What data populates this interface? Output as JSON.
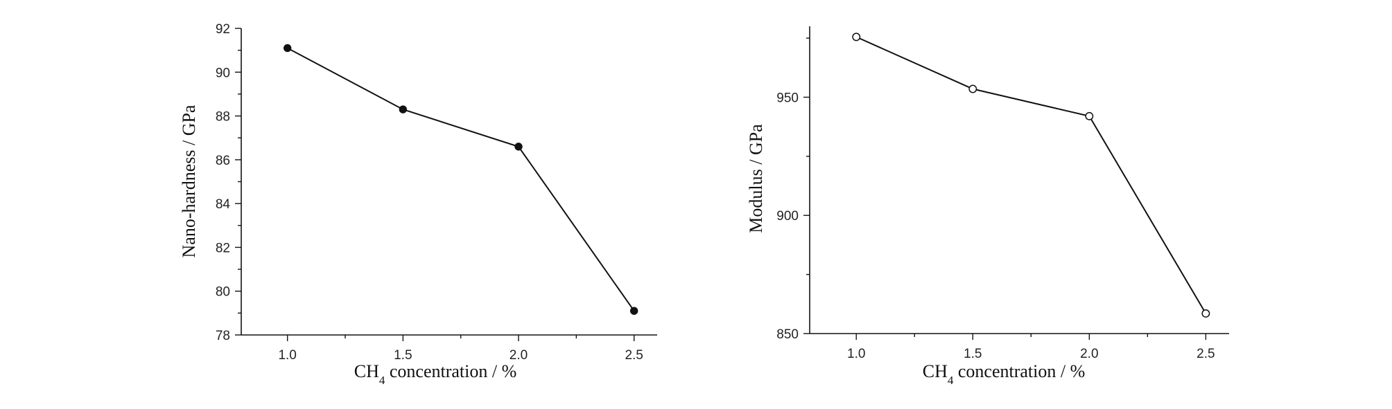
{
  "chart_data": [
    {
      "type": "line",
      "x": [
        1.0,
        1.5,
        2.0,
        2.5
      ],
      "xlim": [
        0.8,
        2.6
      ],
      "ylim": [
        78,
        92
      ],
      "x_ticks": [
        "1.0",
        "1.5",
        "2.0",
        "2.5"
      ],
      "y_ticks": [
        "78",
        "80",
        "82",
        "84",
        "86",
        "88",
        "90",
        "92"
      ],
      "xlabel": {
        "main": "CH",
        "sub": "4",
        "rest": " concentration / %"
      },
      "ylabel": "Nano-hardness / GPa",
      "series": [
        {
          "values": [
            91.1,
            88.3,
            86.6,
            79.1
          ],
          "marker": "filled-circle",
          "color": "#111111"
        }
      ],
      "grid": false
    },
    {
      "type": "line",
      "x": [
        1.0,
        1.5,
        2.0,
        2.5
      ],
      "xlim": [
        0.8,
        2.6
      ],
      "ylim": [
        850,
        980
      ],
      "x_ticks": [
        "1.0",
        "1.5",
        "2.0",
        "2.5"
      ],
      "y_ticks": [
        "850",
        "900",
        "950"
      ],
      "xlabel": {
        "main": "CH",
        "sub": "4",
        "rest": " concentration / %"
      },
      "ylabel": "Modulus / GPa",
      "series": [
        {
          "values": [
            975.5,
            953.5,
            942.0,
            858.5
          ],
          "marker": "open-circle",
          "color": "#111111"
        }
      ],
      "grid": false
    }
  ]
}
